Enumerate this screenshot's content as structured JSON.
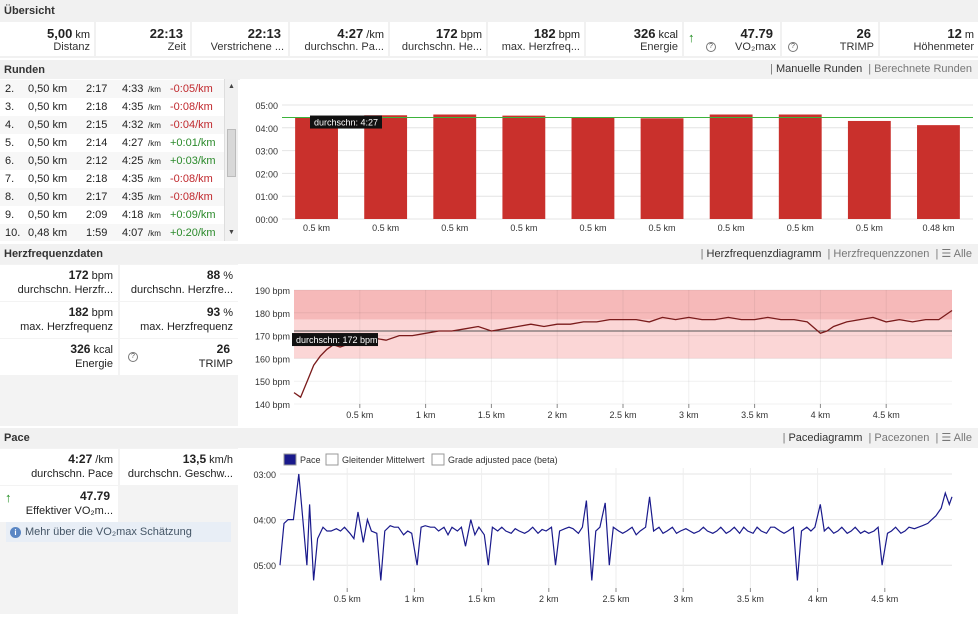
{
  "overview": {
    "title": "Übersicht",
    "cells": [
      {
        "value": "5,00",
        "unit": "km",
        "label": "Distanz"
      },
      {
        "value": "22:13",
        "unit": "",
        "label": "Zeit"
      },
      {
        "value": "22:13",
        "unit": "",
        "label": "Verstrichene ..."
      },
      {
        "value": "4:27",
        "unit": "/km",
        "label": "durchschn. Pa..."
      },
      {
        "value": "172",
        "unit": "bpm",
        "label": "durchschn. He..."
      },
      {
        "value": "182",
        "unit": "bpm",
        "label": "max. Herzfreq..."
      },
      {
        "value": "326",
        "unit": "kcal",
        "label": "Energie"
      },
      {
        "value": "47.79",
        "unit": "",
        "label": "VO₂max"
      },
      {
        "value": "26",
        "unit": "",
        "label": "TRIMP"
      },
      {
        "value": "12",
        "unit": "m",
        "label": "Höhenmeter"
      }
    ]
  },
  "laps_section": {
    "title": "Runden",
    "tab_active": "Manuelle Runden",
    "tab_inactive": "Berechnete Runden",
    "rows": [
      {
        "n": "2.",
        "dist": "0,50 km",
        "time": "2:17",
        "pace": "4:33",
        "unit": "/km",
        "diff": "-0:05/km",
        "sign": "neg"
      },
      {
        "n": "3.",
        "dist": "0,50 km",
        "time": "2:18",
        "pace": "4:35",
        "unit": "/km",
        "diff": "-0:08/km",
        "sign": "neg"
      },
      {
        "n": "4.",
        "dist": "0,50 km",
        "time": "2:15",
        "pace": "4:32",
        "unit": "/km",
        "diff": "-0:04/km",
        "sign": "neg"
      },
      {
        "n": "5.",
        "dist": "0,50 km",
        "time": "2:14",
        "pace": "4:27",
        "unit": "/km",
        "diff": "+0:01/km",
        "sign": "pos"
      },
      {
        "n": "6.",
        "dist": "0,50 km",
        "time": "2:12",
        "pace": "4:25",
        "unit": "/km",
        "diff": "+0:03/km",
        "sign": "pos"
      },
      {
        "n": "7.",
        "dist": "0,50 km",
        "time": "2:18",
        "pace": "4:35",
        "unit": "/km",
        "diff": "-0:08/km",
        "sign": "neg"
      },
      {
        "n": "8.",
        "dist": "0,50 km",
        "time": "2:17",
        "pace": "4:35",
        "unit": "/km",
        "diff": "-0:08/km",
        "sign": "neg"
      },
      {
        "n": "9.",
        "dist": "0,50 km",
        "time": "2:09",
        "pace": "4:18",
        "unit": "/km",
        "diff": "+0:09/km",
        "sign": "pos"
      },
      {
        "n": "10.",
        "dist": "0,48 km",
        "time": "1:59",
        "pace": "4:07",
        "unit": "/km",
        "diff": "+0:20/km",
        "sign": "pos"
      }
    ]
  },
  "hr_section": {
    "title": "Herzfrequenzdaten",
    "tab_active": "Herzfrequenzdiagramm",
    "tab_inactive": "Herzfrequenzzonen",
    "tab_menu": "Alle",
    "stats": [
      {
        "value": "172",
        "unit": "bpm",
        "label": "durchschn. Herzfr..."
      },
      {
        "value": "88",
        "unit": "%",
        "label": "durchschn. Herzfre..."
      },
      {
        "value": "182",
        "unit": "bpm",
        "label": "max. Herzfrequenz"
      },
      {
        "value": "93",
        "unit": "%",
        "label": "max. Herzfrequenz"
      },
      {
        "value": "326",
        "unit": "kcal",
        "label": "Energie"
      },
      {
        "value": "26",
        "unit": "",
        "label": "TRIMP"
      }
    ]
  },
  "pace_section": {
    "title": "Pace",
    "tab_active": "Pacediagramm",
    "tab_inactive": "Pacezonen",
    "tab_menu": "Alle",
    "stats": [
      {
        "value": "4:27",
        "unit": "/km",
        "label": "durchschn. Pace"
      },
      {
        "value": "13,5",
        "unit": "km/h",
        "label": "durchschn. Geschw..."
      },
      {
        "value": "47.79",
        "unit": "",
        "label": "Effektiver VO₂m..."
      }
    ],
    "vo2_info": "Mehr über die VO₂max Schätzung"
  },
  "chart_data": [
    {
      "type": "bar",
      "categories": [
        "0.5 km",
        "0.5 km",
        "0.5 km",
        "0.5 km",
        "0.5 km",
        "0.5 km",
        "0.5 km",
        "0.5 km",
        "0.5 km",
        "0.48 km"
      ],
      "values_seconds": [
        268,
        273,
        275,
        272,
        267,
        265,
        275,
        275,
        258,
        247
      ],
      "yticks": [
        "00:00",
        "01:00",
        "02:00",
        "03:00",
        "04:00",
        "05:00"
      ],
      "ylim_seconds": [
        0,
        300
      ],
      "avg_seconds": 267,
      "avg_label": "durchschn: 4:27",
      "bar_color": "#c9302c",
      "avg_color": "#3bb33b"
    },
    {
      "type": "line",
      "series_name": "heart rate",
      "x_km": [
        0,
        0.05,
        0.1,
        0.15,
        0.2,
        0.25,
        0.3,
        0.35,
        0.4,
        0.45,
        0.5,
        0.6,
        0.7,
        0.8,
        0.9,
        1.0,
        1.1,
        1.2,
        1.3,
        1.4,
        1.5,
        1.6,
        1.7,
        1.8,
        1.9,
        2.0,
        2.1,
        2.2,
        2.3,
        2.4,
        2.5,
        2.6,
        2.7,
        2.8,
        2.9,
        3.0,
        3.1,
        3.2,
        3.3,
        3.4,
        3.5,
        3.6,
        3.7,
        3.8,
        3.9,
        4.0,
        4.05,
        4.1,
        4.2,
        4.3,
        4.4,
        4.5,
        4.6,
        4.7,
        4.8,
        4.9,
        5.0
      ],
      "y_bpm": [
        145,
        143,
        150,
        157,
        161,
        164,
        166,
        165,
        166,
        167,
        168,
        169,
        168,
        170,
        170,
        171,
        172,
        172,
        173,
        174,
        172,
        173,
        174,
        175,
        174,
        175,
        175,
        176,
        176,
        177,
        177,
        177,
        176,
        178,
        177,
        178,
        177,
        177,
        178,
        177,
        177,
        178,
        177,
        177,
        176,
        171,
        172,
        174,
        176,
        177,
        178,
        176,
        177,
        176,
        177,
        177,
        181
      ],
      "ylim": [
        140,
        190
      ],
      "yticks": [
        "140 bpm",
        "150 bpm",
        "160 bpm",
        "170 bpm",
        "180 bpm",
        "190 bpm"
      ],
      "xticks": [
        "0.5 km",
        "1 km",
        "1.5 km",
        "2 km",
        "2.5 km",
        "3 km",
        "3.5 km",
        "4 km",
        "4.5 km"
      ],
      "zones": [
        [
          160,
          177
        ],
        [
          177,
          190
        ]
      ],
      "avg": 172,
      "avg_label": "durchschn: 172 bpm",
      "line_color": "#7a1b1b",
      "zone_color": "#f7c6c6"
    },
    {
      "type": "line",
      "legend": [
        "Pace",
        "Gleitender Mittelwert",
        "Grade adjusted pace (beta)"
      ],
      "x_km": [
        0,
        0.03,
        0.06,
        0.1,
        0.14,
        0.2,
        0.22,
        0.25,
        0.28,
        0.32,
        0.35,
        0.38,
        0.42,
        0.45,
        0.48,
        0.52,
        0.55,
        0.58,
        0.62,
        0.65,
        0.68,
        0.72,
        0.75,
        0.78,
        0.82,
        0.85,
        0.88,
        0.92,
        0.95,
        0.98,
        1.02,
        1.05,
        1.08,
        1.12,
        1.15,
        1.18,
        1.22,
        1.25,
        1.28,
        1.32,
        1.35,
        1.38,
        1.42,
        1.45,
        1.48,
        1.52,
        1.55,
        1.58,
        1.62,
        1.65,
        1.68,
        1.72,
        1.75,
        1.78,
        1.82,
        1.85,
        1.88,
        1.92,
        1.95,
        1.98,
        2.02,
        2.05,
        2.08,
        2.12,
        2.15,
        2.18,
        2.22,
        2.25,
        2.28,
        2.32,
        2.35,
        2.38,
        2.42,
        2.45,
        2.48,
        2.52,
        2.55,
        2.58,
        2.62,
        2.65,
        2.68,
        2.72,
        2.75,
        2.78,
        2.82,
        2.85,
        2.88,
        2.92,
        2.95,
        2.98,
        3.02,
        3.05,
        3.08,
        3.12,
        3.15,
        3.18,
        3.22,
        3.25,
        3.28,
        3.32,
        3.35,
        3.38,
        3.42,
        3.45,
        3.48,
        3.52,
        3.55,
        3.58,
        3.62,
        3.65,
        3.68,
        3.72,
        3.75,
        3.78,
        3.82,
        3.85,
        3.88,
        3.92,
        3.95,
        3.98,
        4.02,
        4.05,
        4.08,
        4.12,
        4.15,
        4.18,
        4.22,
        4.25,
        4.28,
        4.32,
        4.35,
        4.38,
        4.42,
        4.45,
        4.48,
        4.52,
        4.55,
        4.58,
        4.62,
        4.65,
        4.68,
        4.72,
        4.75,
        4.78,
        4.82,
        4.85,
        4.88,
        4.92,
        4.95,
        4.98,
        5.0
      ],
      "y_seconds": [
        300,
        245,
        240,
        240,
        180,
        300,
        220,
        320,
        265,
        250,
        255,
        255,
        252,
        255,
        250,
        258,
        265,
        230,
        270,
        240,
        255,
        258,
        320,
        255,
        248,
        250,
        250,
        260,
        255,
        258,
        300,
        250,
        248,
        250,
        250,
        255,
        250,
        260,
        250,
        255,
        250,
        275,
        240,
        260,
        250,
        260,
        300,
        250,
        255,
        250,
        255,
        258,
        252,
        255,
        258,
        255,
        250,
        258,
        253,
        255,
        250,
        300,
        255,
        252,
        250,
        252,
        258,
        250,
        215,
        320,
        255,
        250,
        218,
        300,
        250,
        255,
        258,
        255,
        250,
        260,
        255,
        250,
        210,
        255,
        250,
        258,
        255,
        250,
        258,
        255,
        252,
        255,
        258,
        255,
        250,
        255,
        258,
        255,
        250,
        258,
        255,
        250,
        258,
        250,
        255,
        258,
        250,
        255,
        258,
        250,
        250,
        255,
        258,
        255,
        250,
        320,
        255,
        250,
        255,
        250,
        220,
        255,
        250,
        258,
        255,
        250,
        258,
        255,
        250,
        258,
        255,
        258,
        255,
        250,
        300,
        258,
        255,
        250,
        258,
        255,
        250,
        252,
        250,
        248,
        245,
        240,
        235,
        225,
        205,
        220,
        210
      ],
      "ylim_seconds": [
        180,
        330
      ],
      "yticks": [
        "03:00",
        "04:00",
        "05:00"
      ],
      "yticks_seconds": [
        180,
        240,
        300
      ],
      "xticks": [
        "0.5 km",
        "1 km",
        "1.5 km",
        "2 km",
        "2.5 km",
        "3 km",
        "3.5 km",
        "4 km",
        "4.5 km"
      ],
      "line_color": "#1a1a8c"
    }
  ]
}
